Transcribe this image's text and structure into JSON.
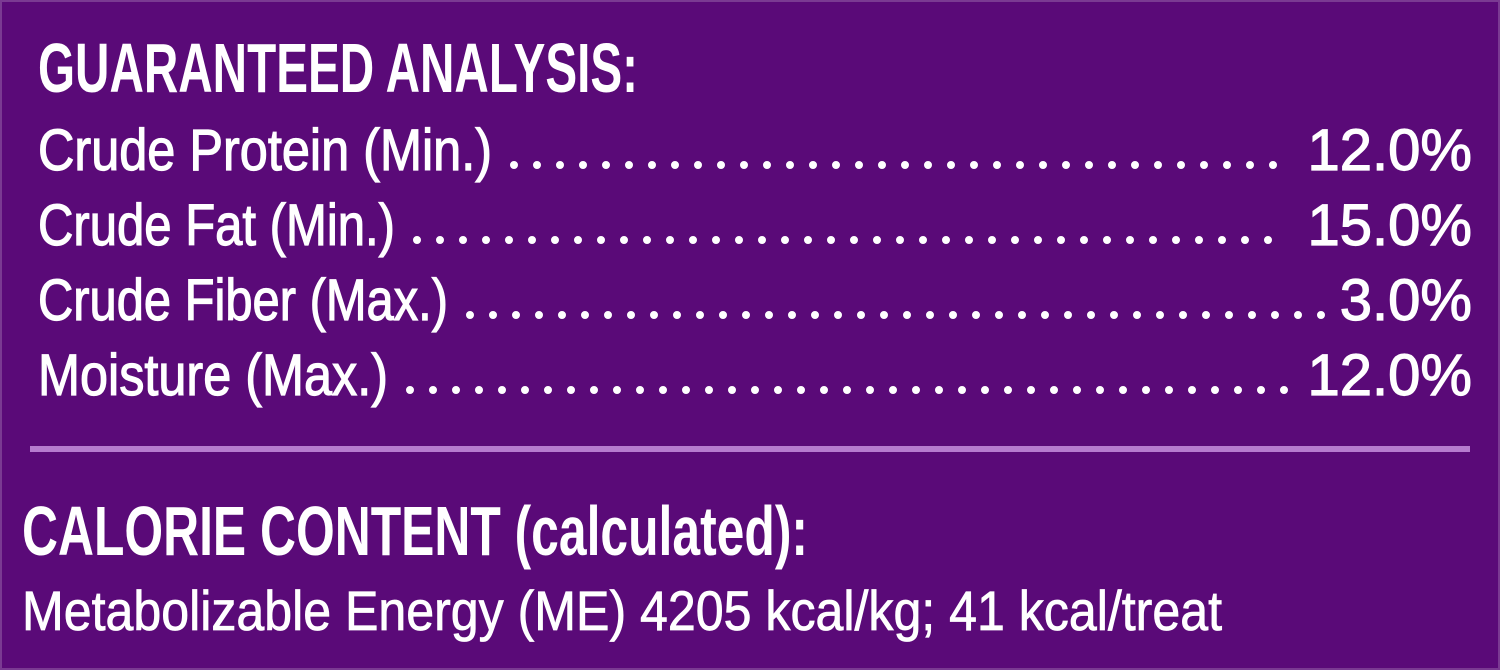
{
  "analysis": {
    "title": "GUARANTEED ANALYSIS:",
    "rows": [
      {
        "label": "Crude Protein (Min.)",
        "value": "12.0%"
      },
      {
        "label": "Crude Fat (Min.)",
        "value": "15.0%"
      },
      {
        "label": "Crude Fiber (Max.)",
        "value": "3.0%"
      },
      {
        "label": "Moisture (Max.)",
        "value": "12.0%"
      }
    ]
  },
  "calorie": {
    "title": "CALORIE CONTENT (calculated):",
    "text": "Metabolizable Energy (ME) 4205 kcal/kg; 41 kcal/treat"
  }
}
